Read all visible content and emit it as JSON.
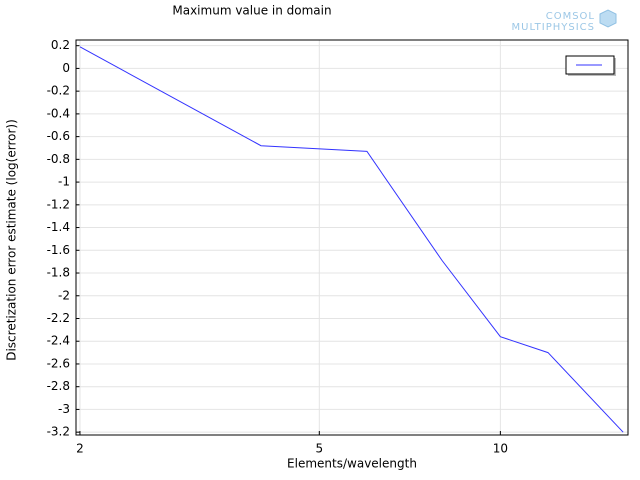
{
  "chart_data": {
    "type": "line",
    "title": "Maximum value in domain",
    "xlabel": "Elements/wavelength",
    "ylabel": "Discretization error estimate (log(error))",
    "xscale": "log",
    "x": [
      2,
      4,
      6,
      8,
      10,
      12,
      16
    ],
    "series": [
      {
        "color": "#3333ff",
        "values": [
          0.19,
          -0.68,
          -0.73,
          -1.69,
          -2.36,
          -2.5,
          -3.2
        ]
      }
    ],
    "xlim": [
      1.97,
      16.3
    ],
    "xticks": [
      2,
      5,
      10
    ],
    "ylim": [
      -3.225,
      0.25
    ],
    "yticks": [
      0.2,
      0,
      -0.2,
      -0.4,
      -0.6,
      -0.8,
      -1,
      -1.2,
      -1.4,
      -1.6,
      -1.8,
      -2,
      -2.2,
      -2.4,
      -2.6,
      -2.8,
      -3,
      -3.2
    ],
    "grid": true,
    "legend": "upper right"
  },
  "logo": [
    "COMSOL",
    "MULTIPHYSICS"
  ]
}
